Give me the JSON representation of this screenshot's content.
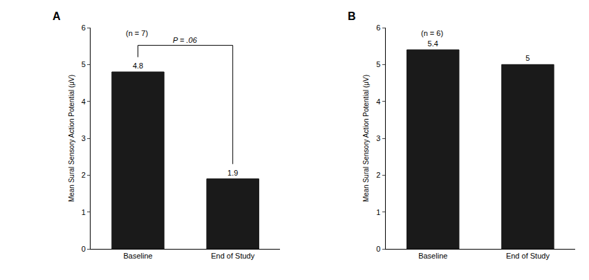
{
  "chart_data": [
    {
      "type": "bar",
      "title": "A",
      "categories": [
        "Baseline",
        "End of Study"
      ],
      "values": [
        4.8,
        1.9
      ],
      "color": "#1a1a1a",
      "y_label": "Mean Sural Sensory Action Potential (μV)",
      "ylim": [
        0,
        6
      ],
      "yticks": [
        0,
        1,
        2,
        3,
        4,
        5,
        6
      ],
      "data_labels": true,
      "grid": false,
      "annotations": [
        "(n = 7)",
        "P = .06"
      ]
    },
    {
      "type": "bar",
      "title": "B",
      "categories": [
        "Baseline",
        "End of Study"
      ],
      "values": [
        5.4,
        5.0
      ],
      "color": "#1a1a1a",
      "y_label": "Mean Sural Sensory Action Potential (μV)",
      "ylim": [
        0,
        6
      ],
      "yticks": [
        0,
        1,
        2,
        3,
        4,
        5,
        6
      ],
      "data_labels": true,
      "grid": false,
      "annotations": [
        "(n = 6)"
      ]
    }
  ]
}
